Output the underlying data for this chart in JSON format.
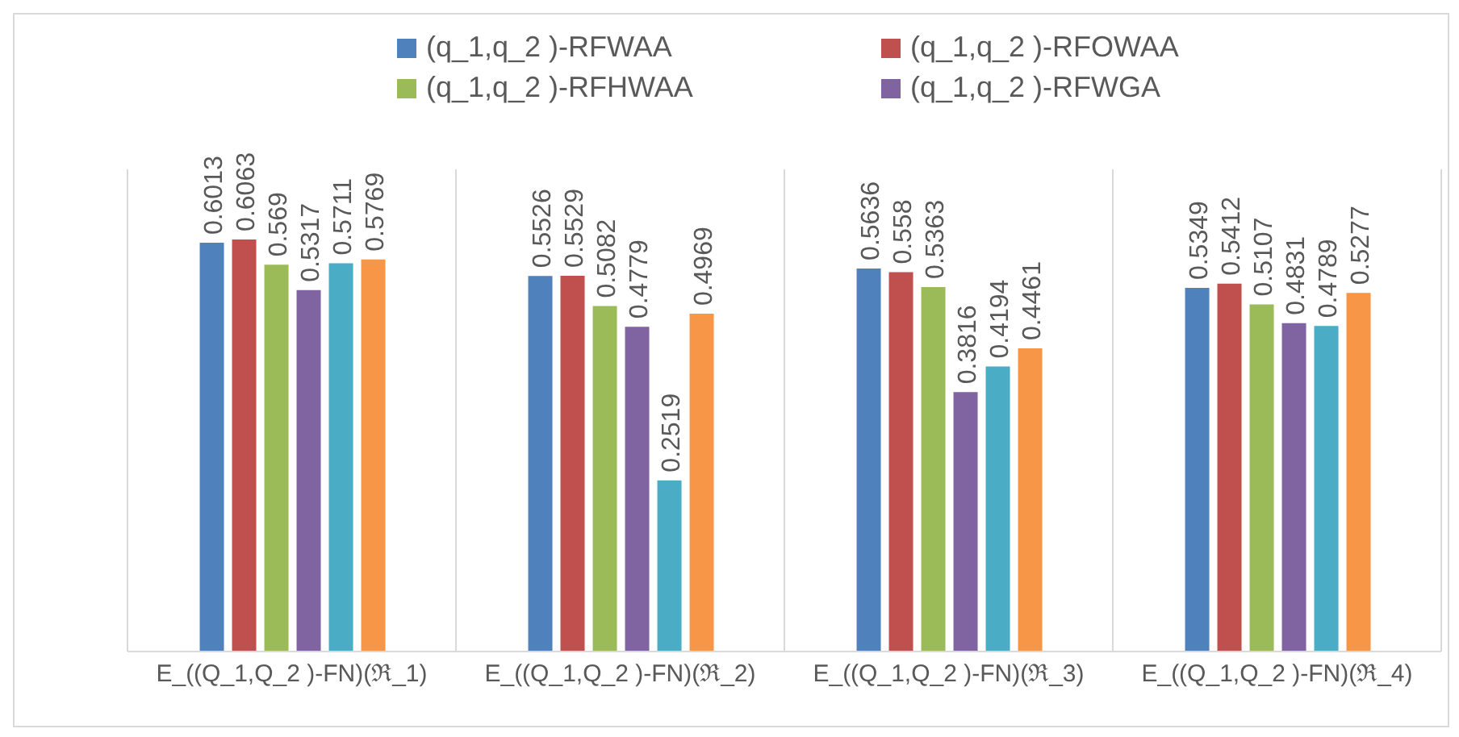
{
  "chart_data": {
    "type": "bar",
    "categories": [
      "E_((Q_1,Q_2 )-FN)(ℜ_1)",
      "E_((Q_1,Q_2 )-FN)(ℜ_2)",
      "E_((Q_1,Q_2 )-FN)(ℜ_3)",
      "E_((Q_1,Q_2 )-FN)(ℜ_4)"
    ],
    "series": [
      {
        "name": "(q_1,q_2 )-RFWAA",
        "color": "#4f81bd",
        "values": [
          0.6013,
          0.5526,
          0.5636,
          0.5349
        ]
      },
      {
        "name": "(q_1,q_2 )-RFOWAA",
        "color": "#c0504d",
        "values": [
          0.6063,
          0.5529,
          0.558,
          0.5412
        ]
      },
      {
        "name": "(q_1,q_2 )-RFHWAA",
        "color": "#9bbb59",
        "values": [
          0.569,
          0.5082,
          0.5363,
          0.5107
        ]
      },
      {
        "name": "(q_1,q_2 )-RFWGA",
        "color": "#8064a2",
        "values": [
          0.5317,
          0.4779,
          0.3816,
          0.4831
        ]
      },
      {
        "color": "#4bacc6",
        "values": [
          0.5711,
          0.2519,
          0.4194,
          0.4789
        ]
      },
      {
        "color": "#f79646",
        "values": [
          0.5769,
          0.4969,
          0.4461,
          0.5277
        ]
      }
    ],
    "data_labels": true,
    "grid": "x",
    "legend": "top"
  }
}
